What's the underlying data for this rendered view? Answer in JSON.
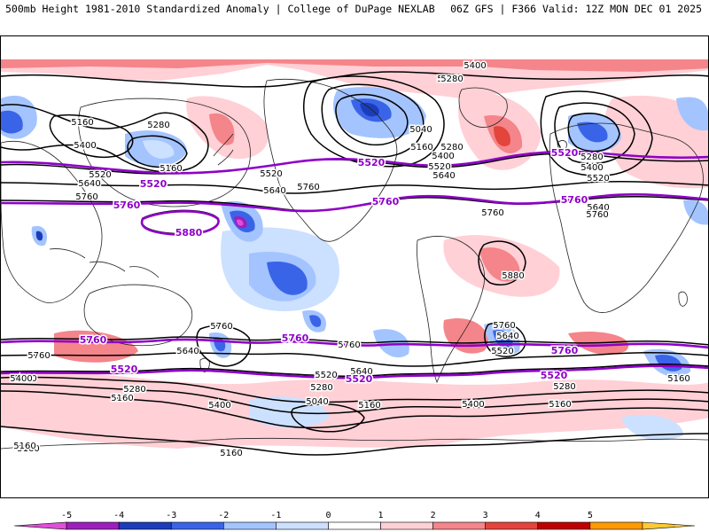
{
  "header": {
    "title": "500mb Height 1981-2010 Standardized Anomaly | College of DuPage NEXLAB",
    "run": "06Z GFS | F366 Valid: 12Z MON DEC 01 2025"
  },
  "colorbar": {
    "ticks": [
      "-5",
      "-4",
      "-3",
      "-2",
      "-1",
      "0",
      "1",
      "2",
      "3",
      "4",
      "5"
    ],
    "colors": [
      "#e14ed9",
      "#9c1fbd",
      "#1c3dbb",
      "#3a64e8",
      "#a4c4ff",
      "#cce0ff",
      "#ffffff",
      "#ffd0d6",
      "#f4858a",
      "#e3443c",
      "#bf0000",
      "#ff9a00",
      "#ffc933"
    ]
  },
  "map": {
    "black_contour_labels": [
      {
        "text": "5400",
        "region": "north-pacific"
      },
      {
        "text": "5160",
        "region": "north-pacific"
      },
      {
        "text": "5280",
        "region": "north-pacific"
      },
      {
        "text": "5280",
        "region": "east-asia"
      },
      {
        "text": "5520",
        "region": "north-pacific"
      },
      {
        "text": "5640",
        "region": "north-pacific"
      },
      {
        "text": "5760",
        "region": "north-pacific"
      },
      {
        "text": "5160",
        "region": "north-pacific"
      },
      {
        "text": "5400",
        "region": "north-pacific"
      },
      {
        "text": "5520",
        "region": "north-pacific"
      },
      {
        "text": "5640",
        "region": "north-america"
      },
      {
        "text": "5760",
        "region": "north-america"
      },
      {
        "text": "5400",
        "region": "arctic"
      },
      {
        "text": "5280",
        "region": "canada"
      },
      {
        "text": "5040",
        "region": "canada"
      },
      {
        "text": "5160",
        "region": "canada"
      },
      {
        "text": "5280",
        "region": "canada"
      },
      {
        "text": "5400",
        "region": "canada"
      },
      {
        "text": "5520",
        "region": "north-america"
      },
      {
        "text": "5640",
        "region": "north-atlantic"
      },
      {
        "text": "5760",
        "region": "atlantic"
      },
      {
        "text": "5280",
        "region": "europe"
      },
      {
        "text": "5400",
        "region": "europe"
      },
      {
        "text": "5520",
        "region": "europe"
      },
      {
        "text": "5640",
        "region": "europe"
      },
      {
        "text": "5760",
        "region": "europe"
      },
      {
        "text": "5880",
        "region": "africa"
      },
      {
        "text": "5760",
        "region": "south-pacific"
      },
      {
        "text": "5640",
        "region": "south-pacific"
      },
      {
        "text": "5760",
        "region": "south-indian-ocean"
      },
      {
        "text": "5520",
        "region": "southern-ocean"
      },
      {
        "text": "5400",
        "region": "southern-ocean"
      },
      {
        "text": "5760",
        "region": "south-pacific"
      },
      {
        "text": "5640",
        "region": "southern-ocean"
      },
      {
        "text": "5280",
        "region": "southern-ocean"
      },
      {
        "text": "5160",
        "region": "southern-ocean"
      },
      {
        "text": "5520",
        "region": "southern-ocean"
      },
      {
        "text": "5280",
        "region": "southern-ocean"
      },
      {
        "text": "5040",
        "region": "southern-ocean"
      },
      {
        "text": "5400",
        "region": "southern-ocean"
      },
      {
        "text": "5160",
        "region": "southern-ocean"
      },
      {
        "text": "5400",
        "region": "southern-ocean"
      },
      {
        "text": "5160",
        "region": "southern-ocean"
      },
      {
        "text": "5760",
        "region": "south-atlantic"
      },
      {
        "text": "5640",
        "region": "south-atlantic"
      },
      {
        "text": "5520",
        "region": "south-atlantic"
      },
      {
        "text": "5280",
        "region": "southern-ocean"
      },
      {
        "text": "5160",
        "region": "southern-ocean"
      },
      {
        "text": "5160",
        "region": "antarctica"
      },
      {
        "text": "5160",
        "region": "antarctica"
      },
      {
        "text": "5400",
        "region": "southern-ocean"
      },
      {
        "text": "5160",
        "region": "southern-ocean"
      }
    ],
    "purple_contour_labels": [
      {
        "text": "5520",
        "region": "north-pacific"
      },
      {
        "text": "5760",
        "region": "north-pacific"
      },
      {
        "text": "5880",
        "region": "north-pacific"
      },
      {
        "text": "5520",
        "region": "north-america"
      },
      {
        "text": "5760",
        "region": "north-america"
      },
      {
        "text": "5520",
        "region": "europe"
      },
      {
        "text": "5760",
        "region": "europe"
      },
      {
        "text": "5760",
        "region": "south-pacific"
      },
      {
        "text": "5760",
        "region": "south-pacific"
      },
      {
        "text": "5760",
        "region": "south-atlantic"
      },
      {
        "text": "5520",
        "region": "south-pacific"
      },
      {
        "text": "5520",
        "region": "south-pacific"
      },
      {
        "text": "5520",
        "region": "south-atlantic"
      }
    ]
  }
}
